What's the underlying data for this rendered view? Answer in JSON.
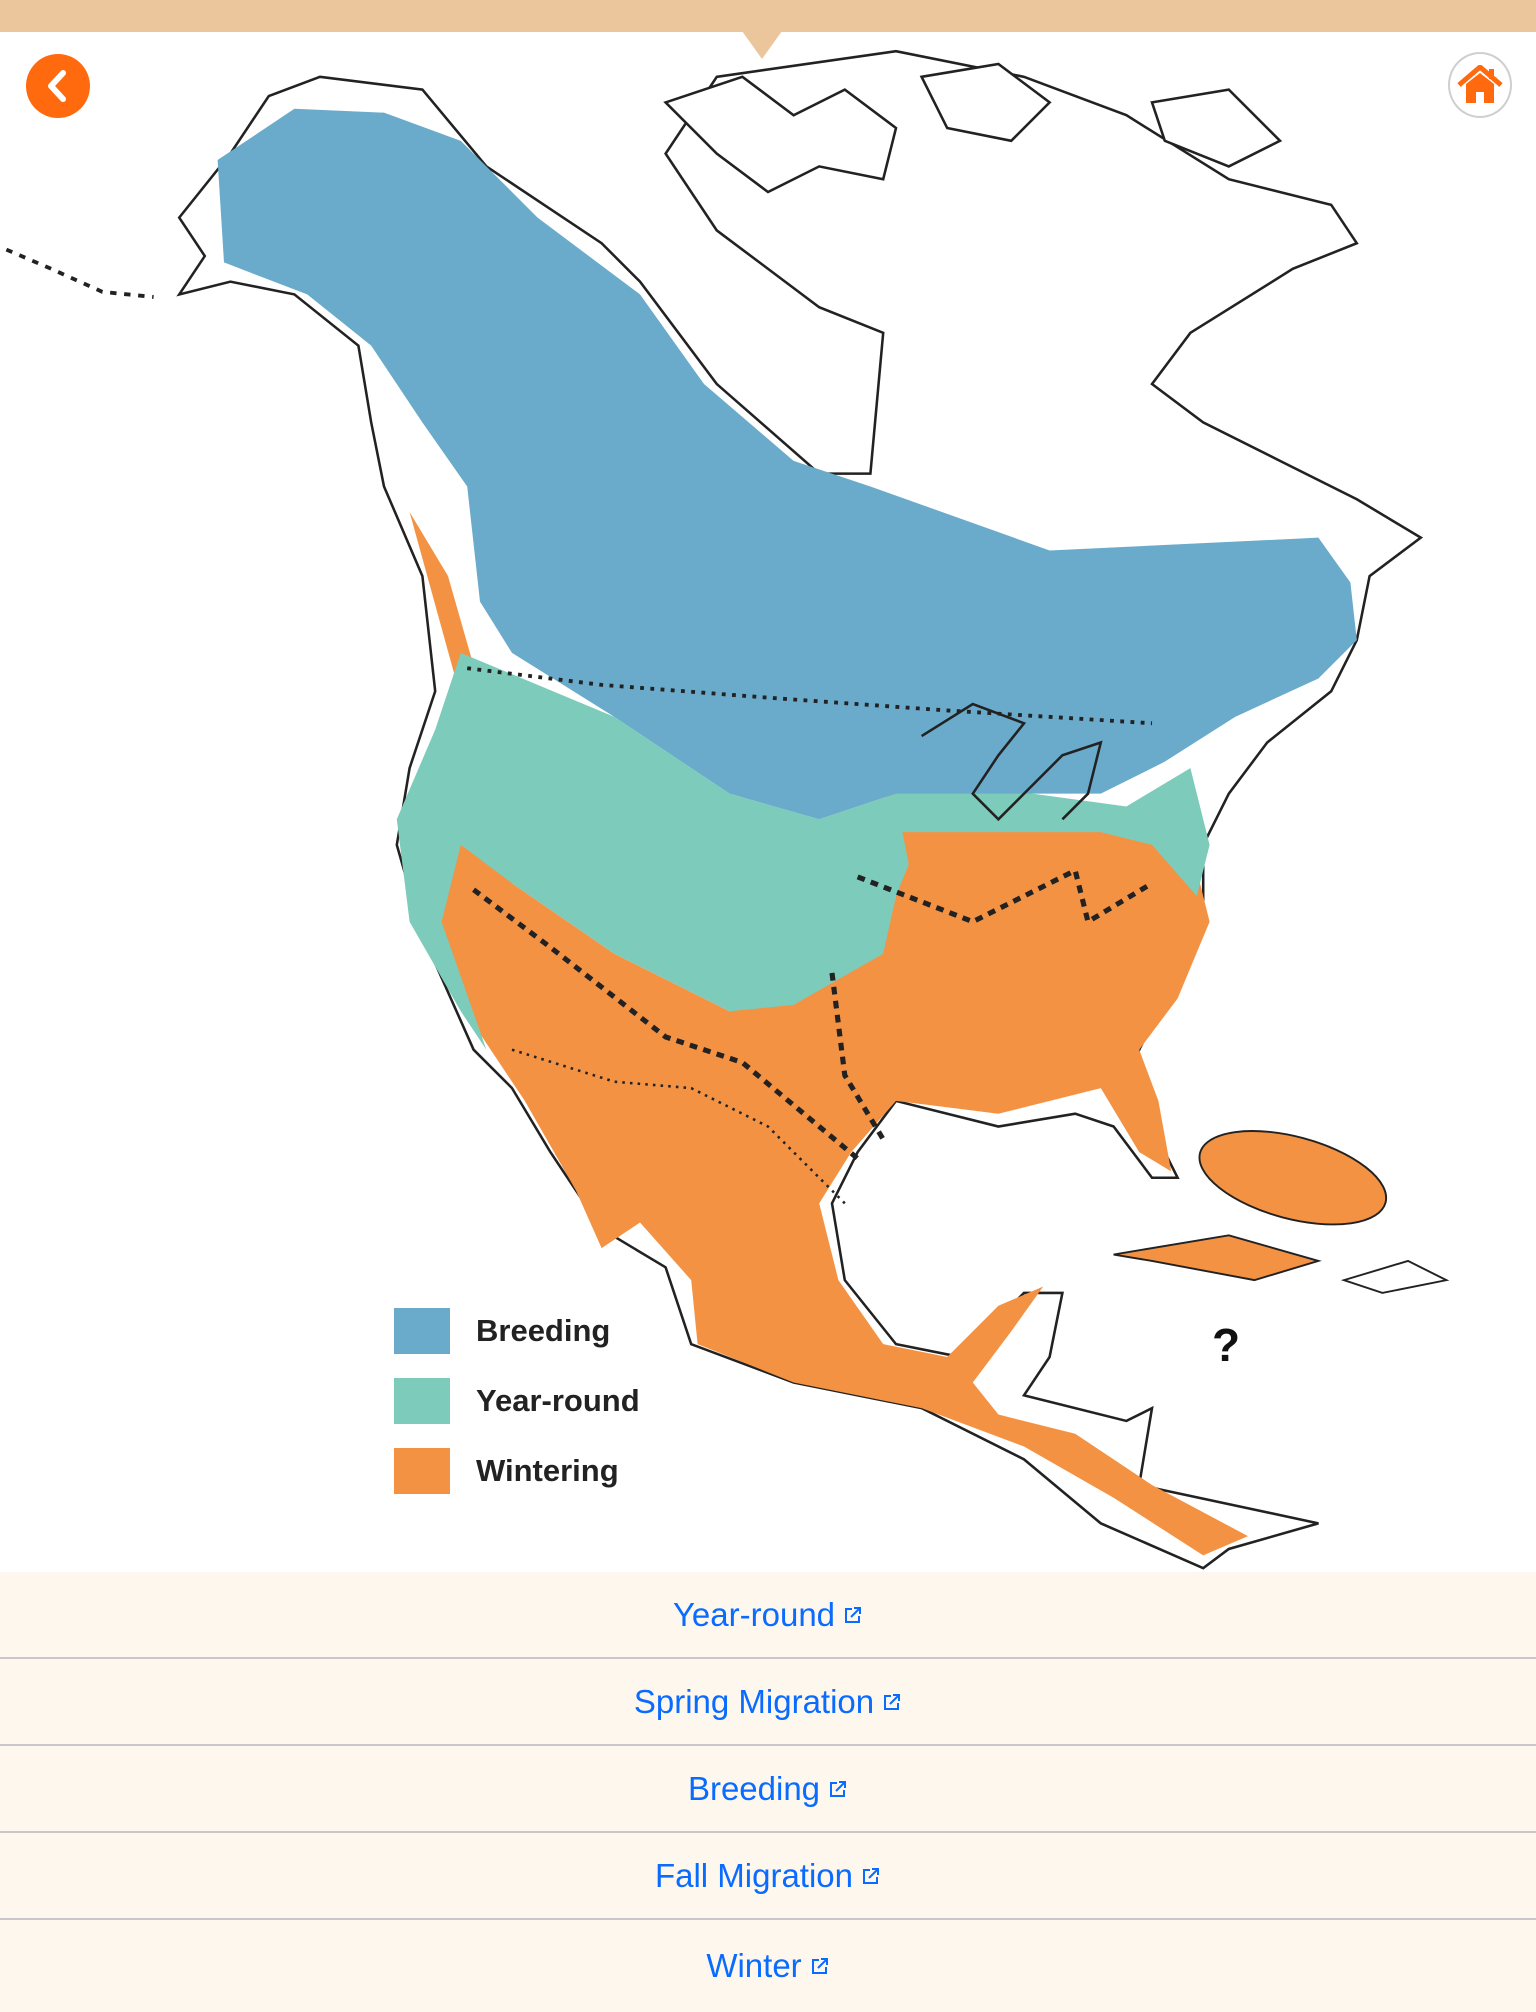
{
  "nav": {
    "back_icon": "chevron-left-icon",
    "home_icon": "home-icon",
    "accent": "#ff6a0e"
  },
  "map": {
    "unknown_marker": "?"
  },
  "legend": [
    {
      "label": "Breeding",
      "color": "#6aabcb"
    },
    {
      "label": "Year-round",
      "color": "#7ccbbb"
    },
    {
      "label": "Wintering",
      "color": "#f49244"
    }
  ],
  "links": [
    {
      "label": "Year-round",
      "icon": "external-link-icon"
    },
    {
      "label": "Spring Migration",
      "icon": "external-link-icon"
    },
    {
      "label": "Breeding",
      "icon": "external-link-icon"
    },
    {
      "label": "Fall Migration",
      "icon": "external-link-icon"
    },
    {
      "label": "Winter",
      "icon": "external-link-icon"
    }
  ],
  "colors": {
    "topbar": "#ebc59b",
    "link": "#0a6bff",
    "link_bg": "#fdf7ee"
  }
}
